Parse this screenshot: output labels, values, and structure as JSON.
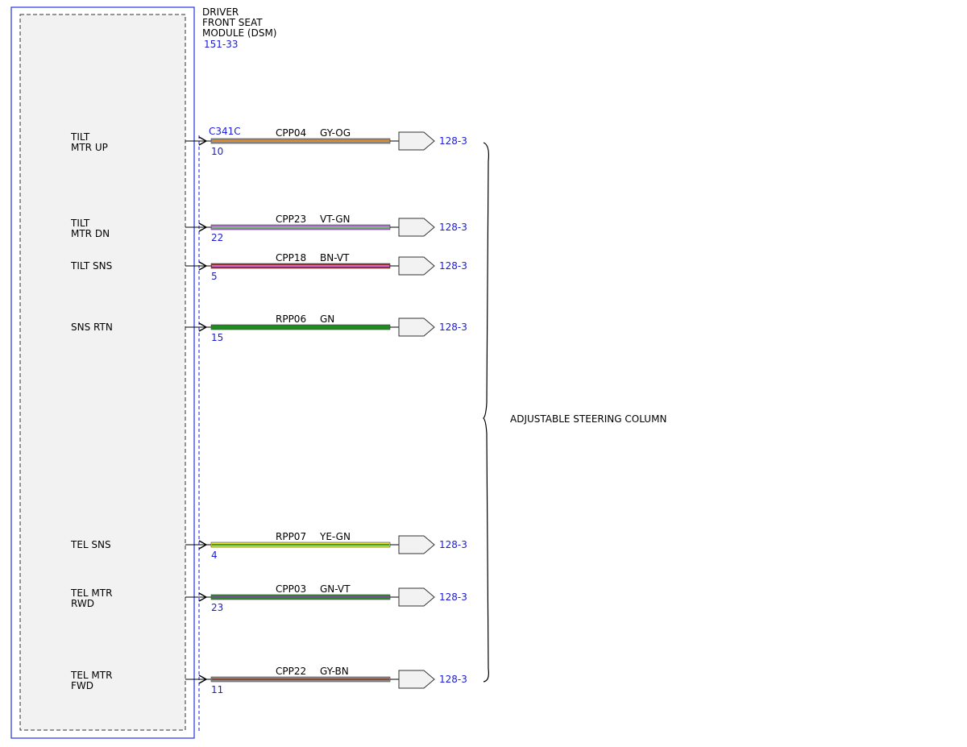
{
  "module": {
    "title_lines": [
      "DRIVER",
      "FRONT SEAT",
      "MODULE (DSM)"
    ],
    "ref": "151-33",
    "connector": "C341C"
  },
  "wires": [
    {
      "label_lines": [
        "TILT",
        "MTR UP"
      ],
      "pin": "10",
      "circuit": "CPP04",
      "color_code": "GY-OG",
      "base_color": "#8a8a8a",
      "stripe_color": "#e08a2a",
      "dest": "128-3"
    },
    {
      "label_lines": [
        "TILT",
        "MTR DN"
      ],
      "pin": "22",
      "circuit": "CPP23",
      "color_code": "VT-GN",
      "base_color": "#b06ad4",
      "stripe_color": "#6fbf6f",
      "dest": "128-3"
    },
    {
      "label_lines": [
        "TILT SNS"
      ],
      "pin": "5",
      "circuit": "CPP18",
      "color_code": "BN-VT",
      "base_color": "#9b2d2d",
      "stripe_color": "#c76bd6",
      "dest": "128-3"
    },
    {
      "label_lines": [
        "SNS RTN"
      ],
      "pin": "15",
      "circuit": "RPP06",
      "color_code": "GN",
      "base_color": "#1f8a1f",
      "stripe_color": "#1f8a1f",
      "dest": "128-3"
    },
    {
      "label_lines": [
        "TEL SNS"
      ],
      "pin": "4",
      "circuit": "RPP07",
      "color_code": "YE-GN",
      "base_color": "#e8e820",
      "stripe_color": "#3a9a3a",
      "dest": "128-3"
    },
    {
      "label_lines": [
        "TEL MTR",
        "RWD"
      ],
      "pin": "23",
      "circuit": "CPP03",
      "color_code": "GN-VT",
      "base_color": "#2e8b2e",
      "stripe_color": "#7a4a9a",
      "dest": "128-3"
    },
    {
      "label_lines": [
        "TEL MTR",
        "FWD"
      ],
      "pin": "11",
      "circuit": "CPP22",
      "color_code": "GY-BN",
      "base_color": "#8c8c8c",
      "stripe_color": "#8b4a3a",
      "dest": "128-3"
    }
  ],
  "component": {
    "label": "ADJUSTABLE STEERING COLUMN"
  }
}
